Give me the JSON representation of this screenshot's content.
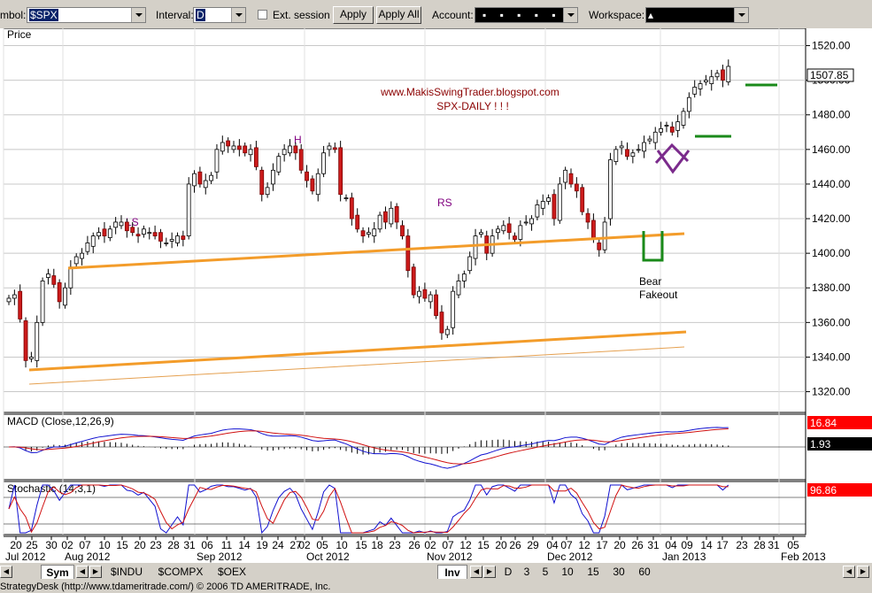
{
  "toolbar": {
    "symbol_label": "mbol:",
    "symbol_value": "$SPX",
    "interval_label": "Interval:",
    "interval_value": "D",
    "ext_session_label": "Ext. session",
    "apply_label": "Apply",
    "apply_all_label": "Apply All",
    "account_label": "Account:",
    "account_value": "▪ ▪ ▪ ▪ ▪",
    "workspace_label": "Workspace:",
    "workspace_value": "▴"
  },
  "chart_data": {
    "type": "candlestick",
    "panel_label": "Price",
    "annotations": {
      "site": "www.MakisSwingTrader.blogspot.com",
      "subtitle": "SPX-DAILY ! ! !",
      "ls": "LS",
      "h": "H",
      "rs": "RS",
      "bear": "Bear",
      "fakeout": "Fakeout"
    },
    "ylim": [
      1308,
      1530
    ],
    "yticks": [
      "1320.00",
      "1340.00",
      "1360.00",
      "1380.00",
      "1400.00",
      "1420.00",
      "1440.00",
      "1460.00",
      "1480.00",
      "1500.00",
      "1520.00"
    ],
    "last_price": "1507.85",
    "closes": [
      1374,
      1376,
      1362,
      1338,
      1340,
      1360,
      1384,
      1388,
      1382,
      1372,
      1380,
      1392,
      1398,
      1400,
      1406,
      1410,
      1412,
      1410,
      1414,
      1418,
      1418,
      1413,
      1412,
      1410,
      1414,
      1412,
      1410,
      1407,
      1406,
      1408,
      1410,
      1408,
      1440,
      1446,
      1440,
      1442,
      1445,
      1460,
      1464,
      1462,
      1462,
      1460,
      1458,
      1460,
      1450,
      1434,
      1438,
      1448,
      1456,
      1460,
      1462,
      1458,
      1448,
      1442,
      1436,
      1446,
      1458,
      1462,
      1460,
      1434,
      1432,
      1420,
      1414,
      1410,
      1412,
      1414,
      1422,
      1418,
      1426,
      1418,
      1410,
      1390,
      1376,
      1378,
      1374,
      1376,
      1364,
      1354,
      1356,
      1378,
      1384,
      1388,
      1398,
      1410,
      1412,
      1400,
      1410,
      1414,
      1416,
      1412,
      1408,
      1416,
      1418,
      1420,
      1428,
      1430,
      1432,
      1420,
      1440,
      1448,
      1440,
      1436,
      1424,
      1418,
      1408,
      1402,
      1418,
      1454,
      1460,
      1462,
      1456,
      1458,
      1460,
      1464,
      1466,
      1470,
      1472,
      1474,
      1470,
      1476,
      1482,
      1490,
      1496,
      1498,
      1500,
      1502,
      1504,
      1500,
      1508
    ],
    "macd": {
      "label": "MACD (Close,12,26,9)",
      "value": "16.84",
      "signal_value": "1.93"
    },
    "stochastic": {
      "label": "Stochastic (14,3,1)",
      "value": "96.86"
    },
    "x_days": [
      "20",
      "25",
      "30",
      "02",
      "07",
      "10",
      "15",
      "20",
      "23",
      "28",
      "31",
      "06",
      "11",
      "14",
      "19",
      "24",
      "27",
      "02",
      "05",
      "10",
      "15",
      "18",
      "23",
      "26",
      "02",
      "07",
      "12",
      "15",
      "20",
      "26",
      "29",
      "04",
      "07",
      "12",
      "17",
      "20",
      "26",
      "31",
      "04",
      "09",
      "14",
      "17",
      "23",
      "28",
      "31",
      "05"
    ],
    "x_months": [
      "Jul 2012",
      "Aug 2012",
      "Sep 2012",
      "Oct 2012",
      "Nov 2012",
      "Dec 2012",
      "Jan 2013",
      "Feb 2013"
    ]
  },
  "tabs": {
    "sym": "Sym",
    "symbols": [
      "$INDU",
      "$COMPX",
      "$OEX"
    ],
    "inv": "Inv",
    "intervals": [
      "D",
      "3",
      "5",
      "10",
      "15",
      "30",
      "60"
    ]
  },
  "status": "StrategyDesk (http://www.tdameritrade.com/) © 2006 TD AMERITRADE, Inc."
}
